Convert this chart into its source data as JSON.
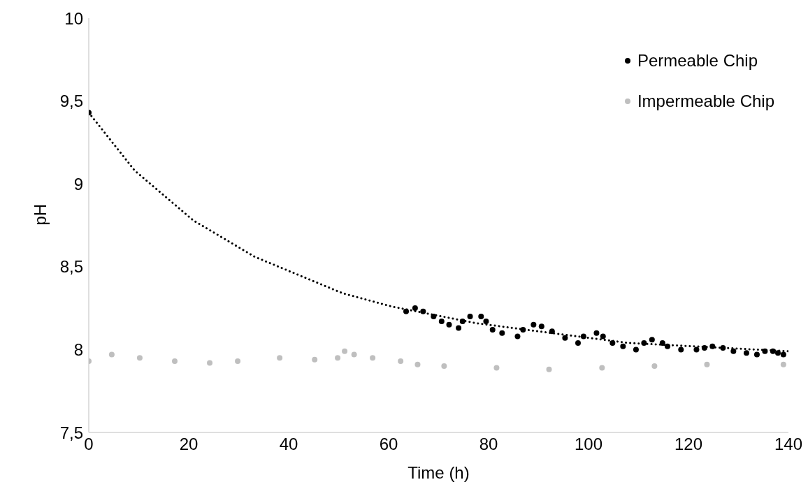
{
  "chart_data": {
    "type": "scatter",
    "xlabel": "Time (h)",
    "ylabel": "pH",
    "xlim": [
      0,
      140
    ],
    "xticks": [
      0,
      20,
      40,
      60,
      80,
      100,
      120,
      140
    ],
    "ylim": [
      7.5,
      10
    ],
    "yticks": [
      {
        "value": 7.5,
        "label": "7,5"
      },
      8,
      {
        "value": 8.5,
        "label": "8,5"
      },
      9,
      {
        "value": 9.5,
        "label": "9,5"
      },
      10
    ],
    "grid": false,
    "legend": "top right",
    "marker": "circle",
    "series": [
      {
        "name": "Permeable Chip",
        "color": "#000000",
        "x": [
          0,
          63.5,
          65.3,
          66.9,
          69.0,
          70.6,
          72.1,
          74.0,
          74.8,
          76.3,
          78.5,
          79.5,
          80.8,
          82.7,
          85.8,
          86.9,
          89.0,
          90.6,
          92.7,
          95.3,
          97.9,
          99.0,
          101.6,
          102.9,
          104.8,
          106.9,
          109.5,
          111.1,
          112.7,
          114.8,
          115.8,
          118.5,
          121.6,
          123.2,
          124.8,
          126.9,
          129.0,
          131.6,
          133.7,
          135.3,
          136.9,
          137.9,
          139.0
        ],
        "values": [
          9.43,
          8.23,
          8.25,
          8.23,
          8.2,
          8.17,
          8.15,
          8.13,
          8.17,
          8.2,
          8.2,
          8.17,
          8.12,
          8.1,
          8.08,
          8.12,
          8.15,
          8.14,
          8.11,
          8.07,
          8.04,
          8.08,
          8.1,
          8.08,
          8.04,
          8.02,
          8.0,
          8.04,
          8.06,
          8.04,
          8.02,
          8.0,
          8.0,
          8.01,
          8.02,
          8.01,
          7.99,
          7.98,
          7.97,
          7.99,
          7.99,
          7.98,
          7.97
        ]
      },
      {
        "name": "Impermeable Chip",
        "color": "#bfbfbf",
        "x": [
          0,
          4.6,
          10.2,
          17.2,
          24.2,
          29.8,
          38.2,
          45.2,
          49.8,
          51.2,
          53.1,
          56.8,
          62.4,
          65.8,
          71.1,
          81.6,
          92.1,
          102.7,
          113.2,
          123.7,
          139.0
        ],
        "values": [
          7.93,
          7.97,
          7.95,
          7.93,
          7.92,
          7.93,
          7.95,
          7.94,
          7.95,
          7.99,
          7.97,
          7.95,
          7.93,
          7.91,
          7.9,
          7.89,
          7.88,
          7.89,
          7.9,
          7.91,
          7.91
        ]
      },
      {
        "type": "line",
        "color": "#000000",
        "marker": "none",
        "line_style": "dotted",
        "x": [
          0,
          9.2,
          20.9,
          33.2,
          50.8,
          60.6,
          77.4,
          90,
          108,
          140
        ],
        "values": [
          9.43,
          9.08,
          8.78,
          8.56,
          8.34,
          8.26,
          8.16,
          8.11,
          8.04,
          7.99
        ]
      }
    ]
  }
}
